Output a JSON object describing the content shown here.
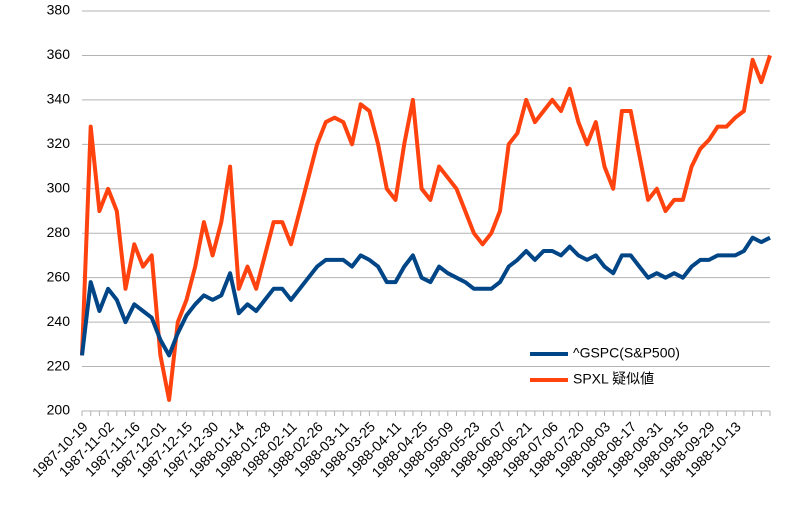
{
  "chart_data": {
    "type": "line",
    "categories": [
      "1987-10-19",
      null,
      null,
      "1987-11-02",
      null,
      null,
      "1987-11-16",
      null,
      null,
      "1987-12-01",
      null,
      null,
      "1987-12-15",
      null,
      null,
      "1987-12-30",
      null,
      null,
      "1988-01-14",
      null,
      null,
      "1988-01-28",
      null,
      null,
      "1988-02-11",
      null,
      null,
      "1988-02-26",
      null,
      null,
      "1988-03-11",
      null,
      null,
      "1988-03-25",
      null,
      null,
      "1988-04-11",
      null,
      null,
      "1988-04-25",
      null,
      null,
      "1988-05-09",
      null,
      null,
      "1988-05-23",
      null,
      null,
      "1988-06-07",
      null,
      null,
      "1988-06-21",
      null,
      null,
      "1988-07-06",
      null,
      null,
      "1988-07-20",
      null,
      null,
      "1988-08-03",
      null,
      null,
      "1988-08-17",
      null,
      null,
      "1988-08-31",
      null,
      null,
      "1988-09-15",
      null,
      null,
      "1988-09-29",
      null,
      null,
      "1988-10-13",
      null,
      null,
      null,
      null
    ],
    "series": [
      {
        "name": "^GSPC(S&P500)",
        "color": "#004586",
        "values": [
          225,
          258,
          245,
          255,
          250,
          240,
          248,
          245,
          242,
          232,
          225,
          235,
          243,
          248,
          252,
          250,
          252,
          262,
          244,
          248,
          245,
          250,
          255,
          255,
          250,
          255,
          260,
          265,
          268,
          268,
          268,
          265,
          270,
          268,
          265,
          258,
          258,
          265,
          270,
          260,
          258,
          265,
          262,
          260,
          258,
          255,
          255,
          255,
          258,
          265,
          268,
          272,
          268,
          272,
          272,
          270,
          274,
          270,
          268,
          270,
          265,
          262,
          270,
          270,
          265,
          260,
          262,
          260,
          262,
          260,
          265,
          268,
          268,
          270,
          270,
          270,
          272,
          278,
          276,
          278
        ]
      },
      {
        "name": "SPXL 疑似値",
        "color": "#ff420e",
        "values": [
          225,
          328,
          290,
          300,
          290,
          255,
          275,
          265,
          270,
          225,
          205,
          240,
          250,
          265,
          285,
          270,
          285,
          310,
          255,
          265,
          255,
          270,
          285,
          285,
          275,
          290,
          305,
          320,
          330,
          332,
          330,
          320,
          338,
          335,
          320,
          300,
          295,
          320,
          340,
          300,
          295,
          310,
          305,
          300,
          290,
          280,
          275,
          280,
          290,
          320,
          325,
          340,
          330,
          335,
          340,
          335,
          345,
          330,
          320,
          330,
          310,
          300,
          335,
          335,
          315,
          295,
          300,
          290,
          295,
          295,
          310,
          318,
          322,
          328,
          328,
          332,
          335,
          358,
          348,
          360
        ]
      }
    ],
    "ylim": [
      200,
      380
    ],
    "yticks": [
      200,
      220,
      240,
      260,
      280,
      300,
      320,
      340,
      360,
      380
    ],
    "grid": true,
    "legend": "right"
  }
}
